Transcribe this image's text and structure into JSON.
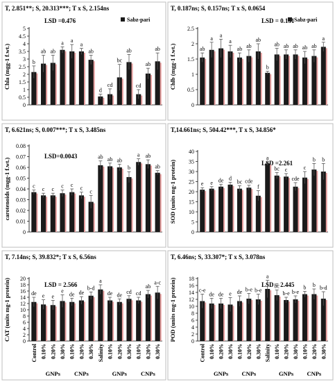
{
  "categories": [
    "Control",
    "0.10%",
    "0.20%",
    "0.30%",
    "0.10%",
    "0.20%",
    "0.30%",
    "Salinity",
    "0.10%",
    "0.20%",
    "0.30%",
    "0.10%",
    "0.20%",
    "0.30%"
  ],
  "groups": [
    {
      "label": "GNPs",
      "start": 1,
      "end": 3
    },
    {
      "label": "CNPs",
      "start": 4,
      "end": 6
    },
    {
      "label": "GNPs",
      "start": 8,
      "end": 10
    },
    {
      "label": "CNPs",
      "start": 11,
      "end": 13
    }
  ],
  "bar_color": "#1a1a1a",
  "shadow_color": "#e8a0a0",
  "chart_data": [
    {
      "type": "bar",
      "stats": "T, 2.851**; S, 20.313***; T x S, 2.154ns",
      "lsd": "LSD =0.476",
      "legend": "Sabz-pari",
      "ylabel": "Chla (mgg-1 f.wt.)",
      "ylim": [
        0,
        5
      ],
      "yticks": [
        0,
        0.5,
        1,
        1.5,
        2,
        2.5,
        3,
        3.5,
        4,
        4.5,
        5
      ],
      "values": [
        2.15,
        2.7,
        2.75,
        3.6,
        3.5,
        3.5,
        2.95,
        0.55,
        0.7,
        1.8,
        2.8,
        0.7,
        2.05,
        2.85
      ],
      "errors": [
        0.4,
        0.55,
        0.5,
        0.2,
        0.45,
        0.2,
        0.3,
        0.15,
        0.35,
        0.85,
        0.5,
        0.3,
        0.35,
        0.55
      ],
      "letters": [
        "b",
        "ab",
        "ab",
        "a",
        "a",
        "a",
        "ab",
        "d",
        "cd",
        "bc",
        "ab",
        "cd",
        "ab",
        "ab"
      ]
    },
    {
      "type": "bar",
      "stats": "T, 0.187ns; S, 0.157ns; T x S, 0.0654",
      "lsd": "LSD = 0.131",
      "legend": "Sabz-pari",
      "ylabel": "Chlb (mgg-1 f.wt.)",
      "ylim": [
        0,
        2.5
      ],
      "yticks": [
        0,
        0.5,
        1,
        1.5,
        2,
        2.5
      ],
      "values": [
        1.55,
        1.8,
        1.85,
        1.75,
        1.55,
        1.6,
        1.75,
        1.05,
        1.65,
        1.65,
        1.65,
        1.55,
        1.6,
        1.9
      ],
      "errors": [
        0.15,
        0.25,
        0.3,
        0.2,
        0.15,
        0.2,
        0.25,
        0.05,
        0.2,
        0.15,
        0.15,
        0.2,
        0.2,
        0.15
      ],
      "letters": [
        "ab",
        "a",
        "a",
        "a",
        "ab",
        "ab",
        "ab",
        "b",
        "ab",
        "ab",
        "ab",
        "ab",
        "ab",
        "a"
      ]
    },
    {
      "type": "bar",
      "stats": "T, 6.621ns; S, 0.007***; T x S, 3.485ns",
      "lsd": "LSD=0.0043",
      "ylabel": "carotenoids (mgg-1 f.wt.)",
      "ylim": [
        0,
        0.08
      ],
      "yticks": [
        0,
        0.01,
        0.02,
        0.03,
        0.04,
        0.05,
        0.06,
        0.07,
        0.08
      ],
      "values": [
        0.037,
        0.034,
        0.034,
        0.036,
        0.037,
        0.034,
        0.028,
        0.062,
        0.061,
        0.06,
        0.051,
        0.065,
        0.063,
        0.055
      ],
      "errors": [
        0.002,
        0.002,
        0.002,
        0.003,
        0.003,
        0.003,
        0.006,
        0.004,
        0.003,
        0.003,
        0.005,
        0.003,
        0.004,
        0.002
      ],
      "letters": [
        "c",
        "c",
        "c",
        "c",
        "c",
        "c",
        "c",
        "ab",
        "ab",
        "ab",
        "b",
        "a",
        "ab",
        "ab"
      ]
    },
    {
      "type": "bar",
      "stats": "T,14.661ns; S, 504.42***, T x S, 34.856*",
      "lsd": "LSD =2.261",
      "ylabel": "SOD (units mg-1 protein)",
      "ylim": [
        0,
        40
      ],
      "yticks": [
        0,
        5,
        10,
        15,
        20,
        25,
        30,
        35,
        40
      ],
      "values": [
        21,
        21.5,
        22.5,
        23.5,
        21.5,
        22,
        18,
        34,
        28,
        27.5,
        22.5,
        27,
        31,
        30
      ],
      "errors": [
        1,
        1,
        1.2,
        1.2,
        1.5,
        1.2,
        2.5,
        0.8,
        1.5,
        1.5,
        2,
        3,
        3,
        4
      ],
      "letters": [
        "e",
        "e",
        "de",
        "d",
        "bc",
        "cde",
        "f",
        "a",
        "bc",
        "c",
        "cde",
        "c",
        "b",
        "b"
      ]
    },
    {
      "type": "bar",
      "stats": "T, 7.14ns; S, 39.832*; T x S, 6.56ns",
      "lsd": "LSD = 2.566",
      "ylabel": "CAT (units mg-1 protein)",
      "ylim": [
        0,
        20
      ],
      "yticks": [
        0,
        2,
        4,
        6,
        8,
        10,
        12,
        14,
        16,
        18,
        20
      ],
      "values": [
        12.5,
        11.7,
        11.5,
        12.8,
        12.5,
        13,
        14.5,
        16.5,
        13,
        12.5,
        13.5,
        13,
        15,
        15.5
      ],
      "errors": [
        1.5,
        1.5,
        1.5,
        2,
        1.2,
        1.2,
        1.2,
        1.5,
        1,
        1,
        1,
        1,
        1.2,
        2
      ],
      "letters": [
        "de",
        "e",
        "e",
        "e",
        "de",
        "de",
        "b-d",
        "a",
        "de",
        "de",
        "cd",
        "cd",
        "ab",
        "a-c"
      ]
    },
    {
      "type": "bar",
      "stats": "T, 6.46ns; S, 33.307*; T x S, 3.078ns",
      "lsd": "LSD = 2.445",
      "ylabel": "POD (units mg-1 protein)",
      "ylim": [
        0,
        18
      ],
      "yticks": [
        0,
        2,
        4,
        6,
        8,
        10,
        12,
        14,
        16,
        18
      ],
      "values": [
        11.5,
        10.8,
        10.8,
        10.5,
        11.5,
        12.2,
        12,
        15,
        13.2,
        11.8,
        12,
        13.5,
        13.5,
        12.2
      ],
      "errors": [
        2,
        1.5,
        1.5,
        2,
        1.5,
        1.5,
        1.5,
        2.5,
        1.5,
        0.8,
        1,
        0.8,
        1.5,
        2
      ],
      "letters": [
        "c-e",
        "de",
        "de",
        "e",
        "de",
        "b-e",
        "b-e",
        "a",
        "bc",
        "b-e",
        "b-e",
        "b",
        "b",
        "b-d"
      ]
    }
  ]
}
